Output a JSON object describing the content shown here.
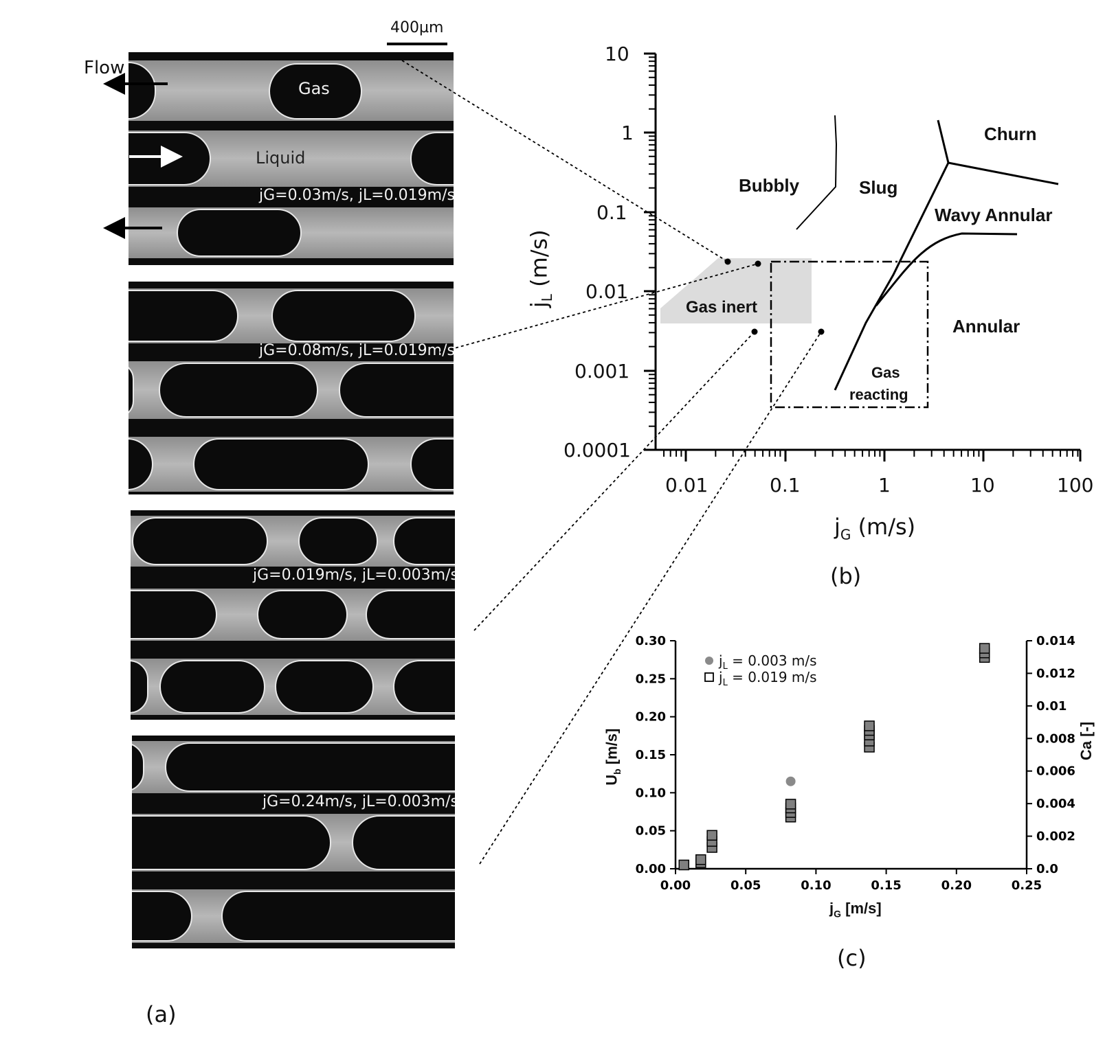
{
  "panel_a": {
    "scale_bar": "400µm",
    "flow_label": "Flow",
    "gas_label": "Gas",
    "liquid_label": "Liquid",
    "captions": [
      "jG=0.03m/s, jL=0.019m/s",
      "jG=0.08m/s, jL=0.019m/s",
      "jG=0.019m/s, jL=0.003m/s",
      "jG=0.24m/s, jL=0.003m/s"
    ],
    "label": "(a)"
  },
  "panel_b": {
    "label": "(b)",
    "xlabel_main": "j",
    "xlabel_sub": "G",
    "xlabel_unit": " (m/s)",
    "ylabel_main": "j",
    "ylabel_sub": "L",
    "ylabel_unit": " (m/s)",
    "x_ticks": [
      "0.01",
      "0.1",
      "1",
      "10",
      "100"
    ],
    "y_ticks": [
      "10",
      "1",
      "0.1",
      "0.01",
      "0.001",
      "0.0001"
    ],
    "regions": {
      "bubbly": "Bubbly",
      "slug": "Slug",
      "churn": "Churn",
      "wavy_annular": "Wavy Annular",
      "annular": "Annular",
      "gas_inert": "Gas inert",
      "gas_reacting_1": "Gas",
      "gas_reacting_2": "reacting"
    }
  },
  "chart_data": {
    "type": "scatter",
    "xlabel": "jG [m/s]",
    "ylabel": "Ub [m/s]",
    "y2label": "Ca [-]",
    "xlim": [
      0.0,
      0.25
    ],
    "ylim": [
      0.0,
      0.3
    ],
    "y2lim": [
      0.0,
      0.014
    ],
    "x_ticks": [
      "0.00",
      "0.05",
      "0.10",
      "0.15",
      "0.20",
      "0.25"
    ],
    "y_ticks": [
      "0.00",
      "0.05",
      "0.10",
      "0.15",
      "0.20",
      "0.25",
      "0.30"
    ],
    "y2_ticks": [
      "0.0",
      "0.002",
      "0.004",
      "0.006",
      "0.008",
      "0.01",
      "0.012",
      "0.014"
    ],
    "legend_position": "top-left",
    "series": [
      {
        "name": "jL = 0.003 m/s",
        "marker": "circle",
        "color": "#8a8a8a",
        "x": [
          0.082
        ],
        "y": [
          0.115
        ]
      },
      {
        "name": "jL = 0.019 m/s",
        "marker": "square",
        "color": "#808080",
        "x": [
          0.006,
          0.018,
          0.018,
          0.026,
          0.026,
          0.026,
          0.082,
          0.082,
          0.082,
          0.082,
          0.138,
          0.138,
          0.138,
          0.138,
          0.138,
          0.22,
          0.22,
          0.22
        ],
        "y": [
          0.005,
          0.008,
          0.012,
          0.028,
          0.036,
          0.044,
          0.068,
          0.074,
          0.08,
          0.085,
          0.16,
          0.168,
          0.176,
          0.182,
          0.188,
          0.278,
          0.284,
          0.29
        ]
      }
    ],
    "panel_label": "(c)"
  }
}
